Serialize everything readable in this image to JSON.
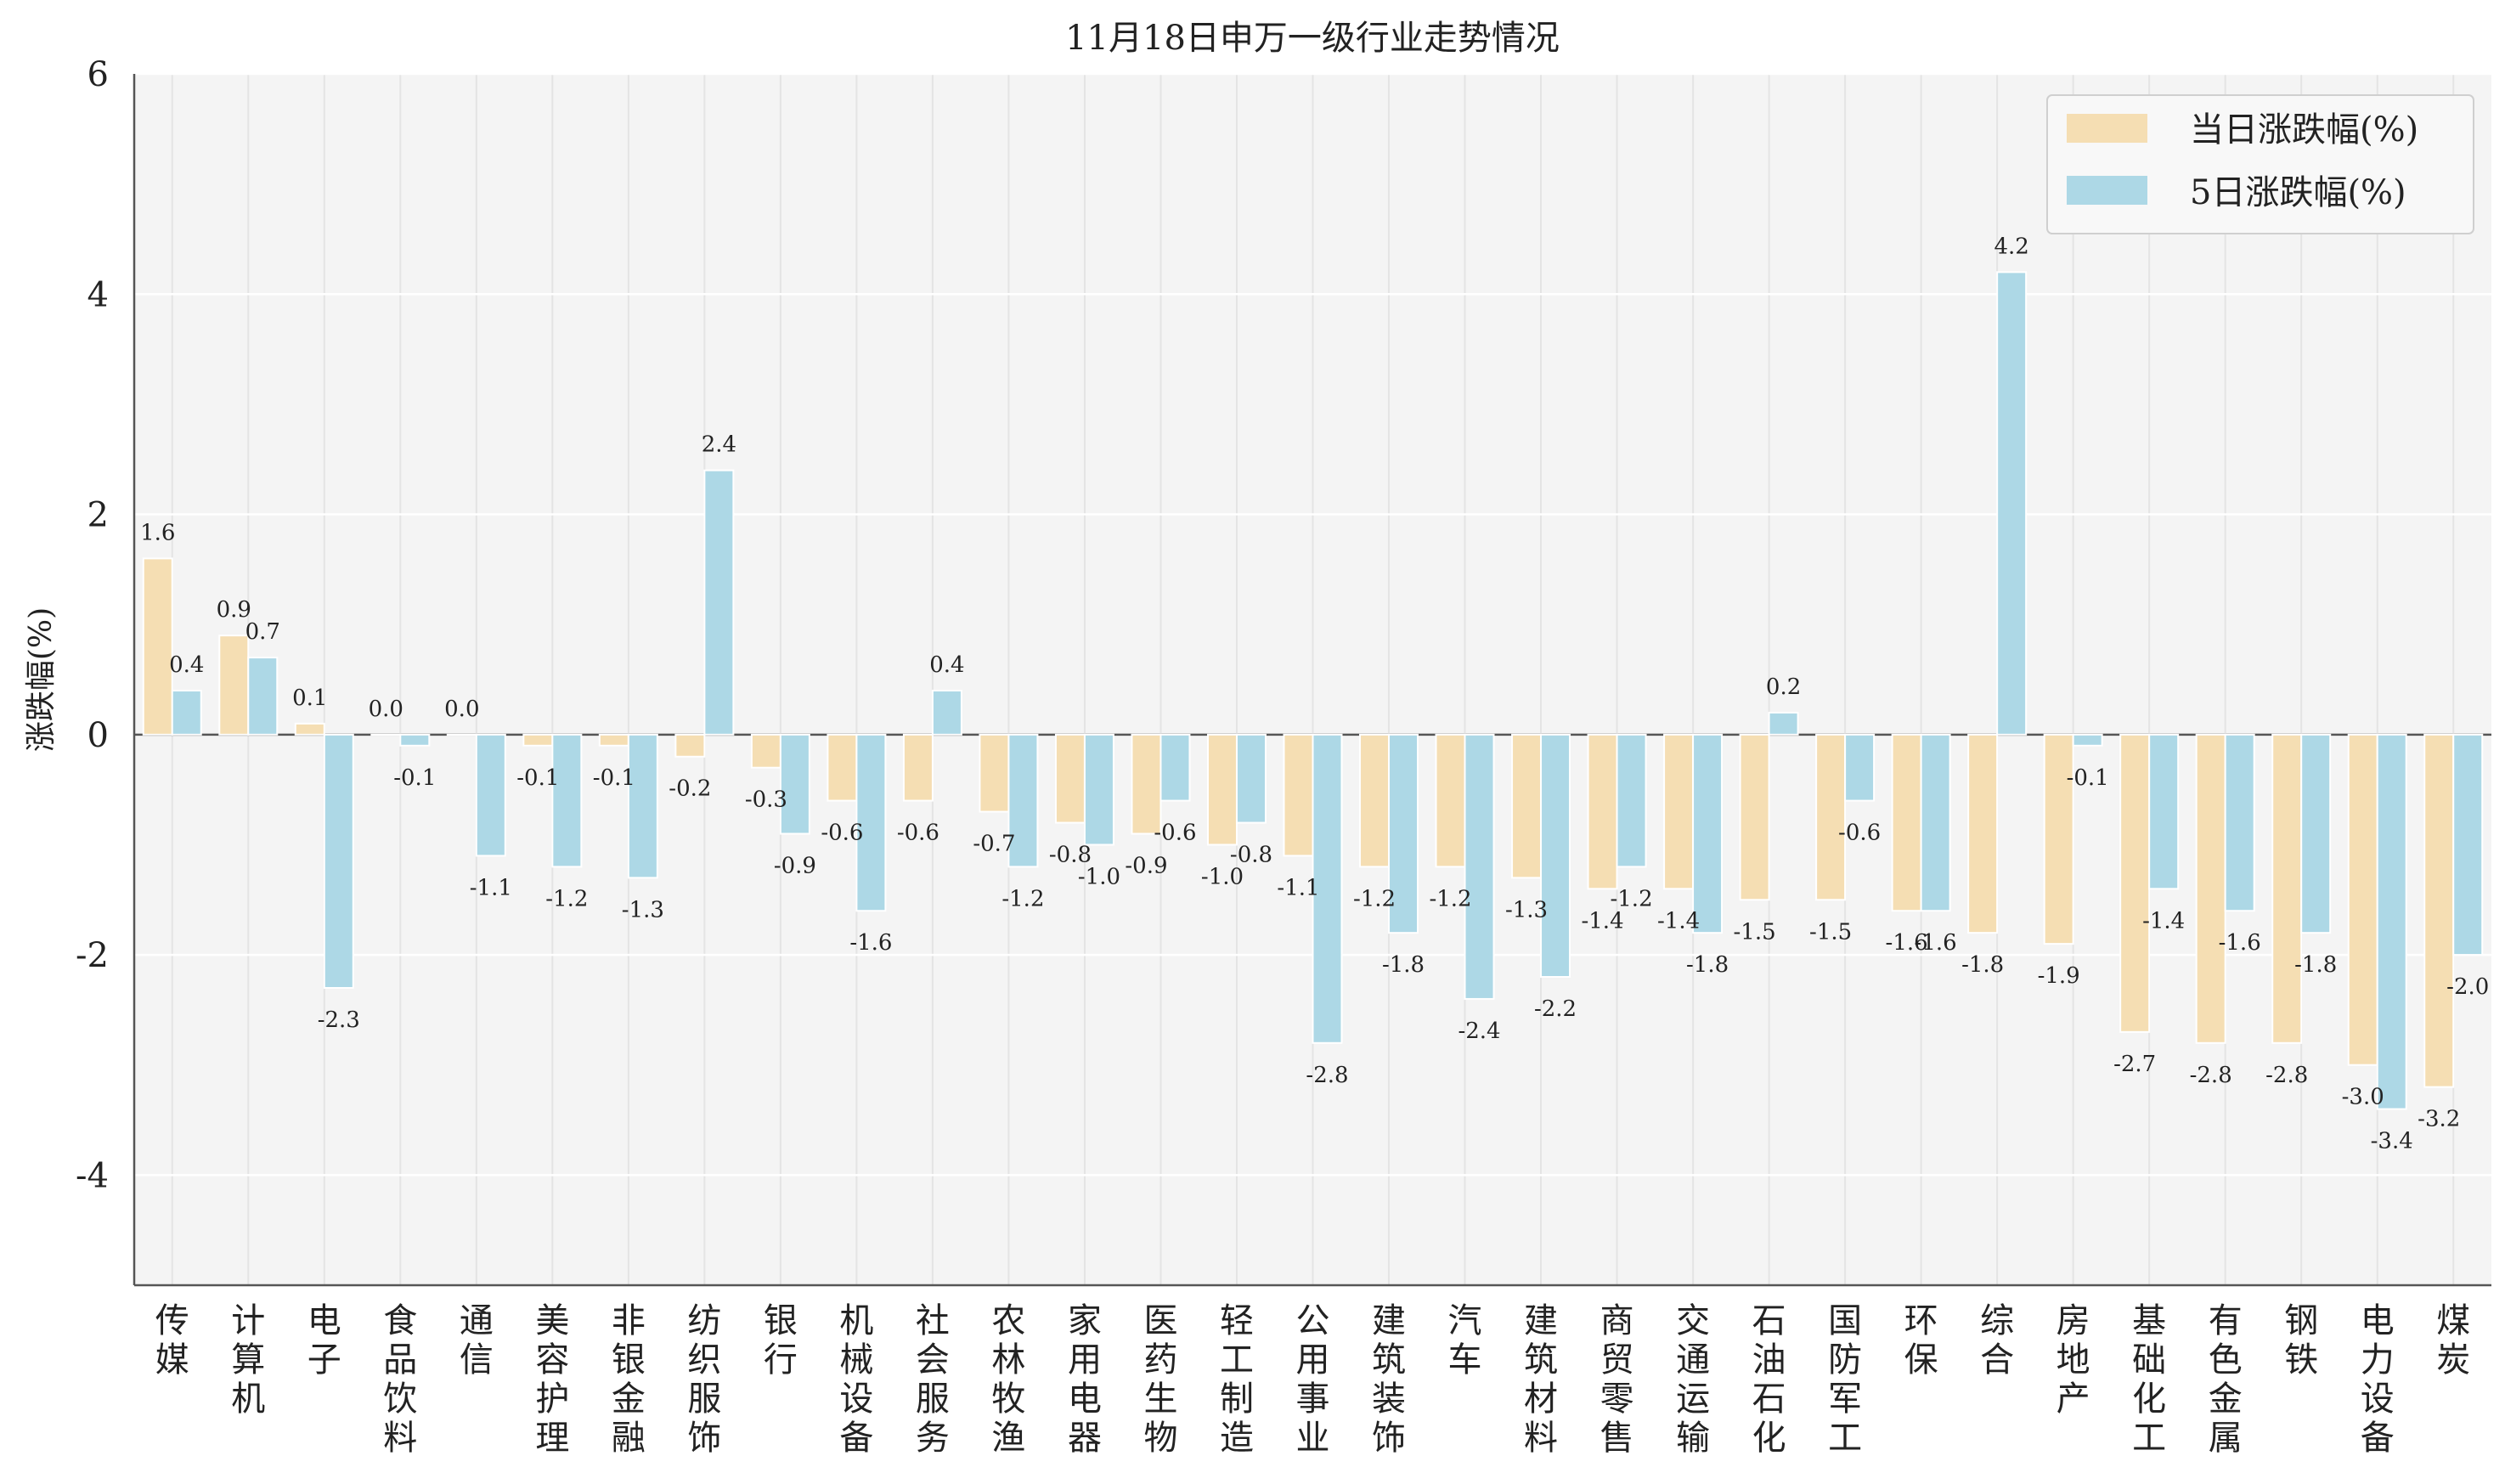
{
  "chart_data": {
    "type": "bar",
    "title": "11月18日申万一级行业走势情况",
    "xlabel": "",
    "ylabel": "涨跌幅(%)",
    "ylim": [
      -5,
      6
    ],
    "yticks": [
      -4,
      -2,
      0,
      2,
      4,
      6
    ],
    "grid": true,
    "legend_position": "top-right",
    "categories": [
      "传媒",
      "计算机",
      "电子",
      "食品饮料",
      "通信",
      "美容护理",
      "非银金融",
      "纺织服饰",
      "银行",
      "机械设备",
      "社会服务",
      "农林牧渔",
      "家用电器",
      "医药生物",
      "轻工制造",
      "公用事业",
      "建筑装饰",
      "汽车",
      "建筑材料",
      "商贸零售",
      "交通运输",
      "石油石化",
      "国防军工",
      "环保",
      "综合",
      "房地产",
      "基础化工",
      "有色金属",
      "钢铁",
      "电力设备",
      "煤炭"
    ],
    "series": [
      {
        "name": "当日涨跌幅(%)",
        "color": "#f5deb3",
        "values": [
          1.6,
          0.9,
          0.1,
          0.0,
          0.0,
          -0.1,
          -0.1,
          -0.2,
          -0.3,
          -0.6,
          -0.6,
          -0.7,
          -0.8,
          -0.9,
          -1.0,
          -1.1,
          -1.2,
          -1.2,
          -1.3,
          -1.4,
          -1.4,
          -1.5,
          -1.5,
          -1.6,
          -1.8,
          -1.9,
          -2.7,
          -2.8,
          -2.8,
          -3.0,
          -3.2
        ]
      },
      {
        "name": "5日涨跌幅(%)",
        "color": "#add8e6",
        "values": [
          0.4,
          0.7,
          -2.3,
          -0.1,
          -1.1,
          -1.2,
          -1.3,
          2.4,
          -0.9,
          -1.6,
          0.4,
          -1.2,
          -1.0,
          -0.6,
          -0.8,
          -2.8,
          -1.8,
          -2.4,
          -2.2,
          -1.2,
          -1.8,
          0.2,
          -0.6,
          -1.6,
          4.2,
          -0.1,
          -1.4,
          -1.6,
          -1.8,
          -3.4,
          -2.0
        ]
      }
    ]
  }
}
